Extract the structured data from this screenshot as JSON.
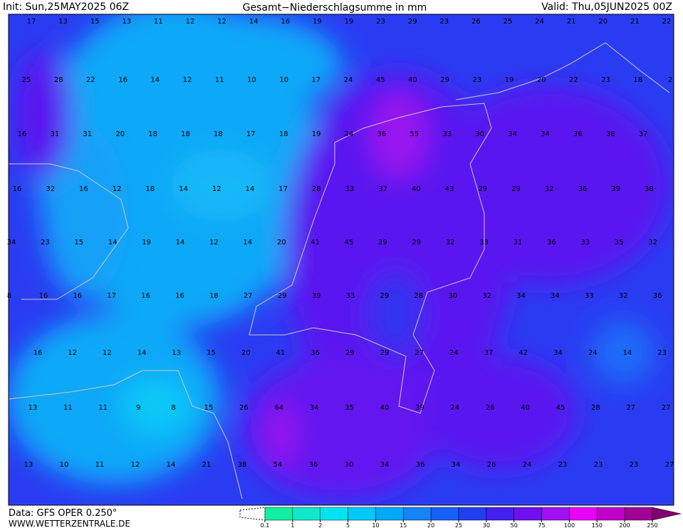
{
  "header": {
    "init": "Init: Sun,25MAY2025 06Z",
    "title": "Gesamt−Niederschlagsumme in mm",
    "valid": "Valid: Thu,05JUN2025 00Z"
  },
  "footer": {
    "data": "Data: GFS OPER 0.250°",
    "site": "WWW.WETTERZENTRALE.DE"
  },
  "labels": {
    "rows": [
      [
        17,
        13,
        15,
        13,
        11,
        12,
        12,
        14,
        16,
        19,
        19,
        23,
        29,
        23,
        26,
        25,
        24,
        21,
        20,
        21,
        22
      ],
      [
        25,
        28,
        22,
        16,
        14,
        12,
        11,
        10,
        10,
        17,
        24,
        45,
        40,
        29,
        23,
        19,
        20,
        22,
        23,
        18,
        2
      ],
      [
        16,
        31,
        31,
        20,
        18,
        18,
        18,
        17,
        18,
        19,
        24,
        36,
        55,
        33,
        30,
        34,
        34,
        36,
        38,
        37
      ],
      [
        16,
        32,
        16,
        12,
        18,
        14,
        12,
        14,
        17,
        28,
        33,
        37,
        40,
        43,
        29,
        29,
        32,
        36,
        39,
        38
      ],
      [
        34,
        23,
        15,
        14,
        19,
        14,
        12,
        14,
        20,
        41,
        45,
        29,
        29,
        32,
        33,
        31,
        36,
        33,
        35,
        32
      ],
      [
        8,
        16,
        16,
        17,
        16,
        16,
        18,
        27,
        29,
        39,
        33,
        29,
        28,
        30,
        32,
        34,
        34,
        33,
        32,
        36
      ],
      [
        16,
        12,
        12,
        14,
        13,
        15,
        20,
        41,
        36,
        29,
        29,
        27,
        24,
        37,
        42,
        34,
        24,
        14,
        23
      ],
      [
        13,
        11,
        11,
        9,
        8,
        15,
        26,
        64,
        34,
        35,
        40,
        39,
        24,
        26,
        40,
        45,
        28,
        27,
        27
      ],
      [
        13,
        10,
        11,
        12,
        14,
        21,
        38,
        54,
        36,
        30,
        34,
        36,
        34,
        26,
        24,
        23,
        23,
        23,
        27
      ]
    ]
  },
  "colorbar": {
    "ticks": [
      0.1,
      1,
      2,
      5,
      10,
      15,
      20,
      25,
      30,
      50,
      75,
      100,
      150,
      200,
      250
    ],
    "colors": [
      "#10f0a0",
      "#10e8cc",
      "#00e4f0",
      "#00c8f8",
      "#00a8f8",
      "#1484f8",
      "#1460f8",
      "#2040f0",
      "#4420f0",
      "#7010f0",
      "#a010f0",
      "#e800f8",
      "#c000c8",
      "#a00098"
    ],
    "over_color": "#800070"
  }
}
